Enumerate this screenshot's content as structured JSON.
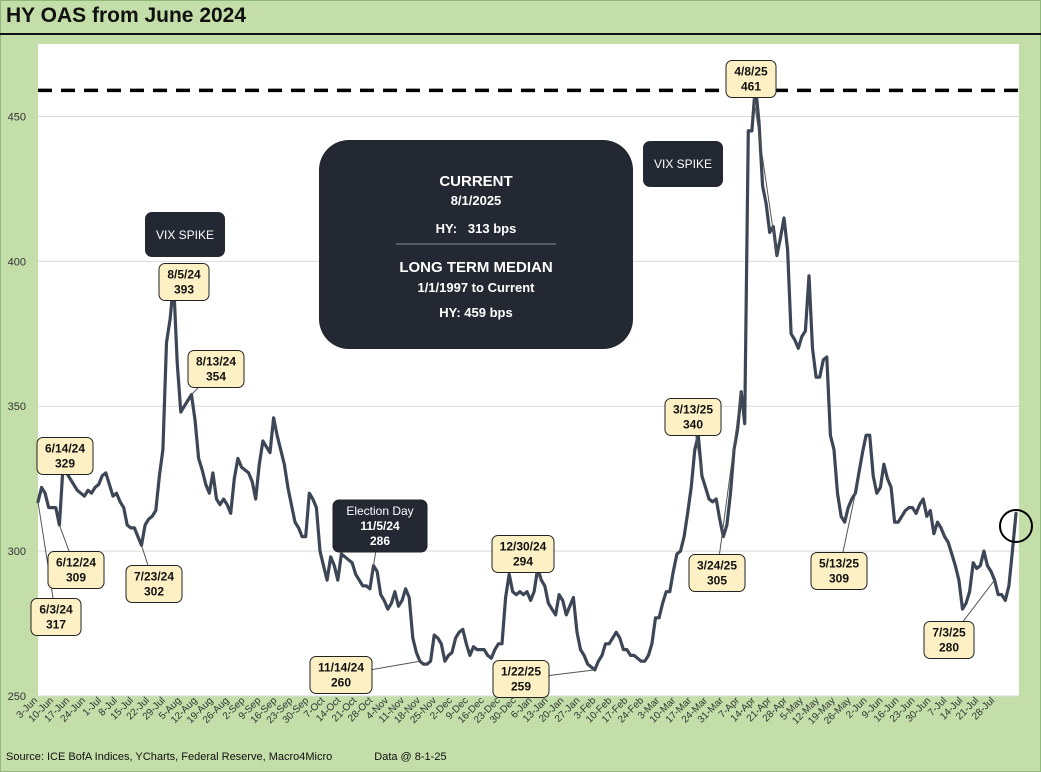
{
  "title": "HY OAS from June 2024",
  "footer": {
    "source": "Source: ICE BofA Indices, YCharts, Federal Reserve, Macro4Micro",
    "data_as_of": "Data @ 8-1-25"
  },
  "summary_box": {
    "current_heading": "CURRENT",
    "current_date": "8/1/2025",
    "current_value": "HY:   313 bps",
    "median_heading": "LONG TERM MEDIAN",
    "median_range": "1/1/1997 to Current",
    "median_value": "HY: 459 bps"
  },
  "colors": {
    "line": "#3d4656",
    "dark_box": "#232833",
    "callout_fill": "#fdf0c4",
    "frame": "#c3dea9",
    "median_line": "#000000"
  },
  "chart_data": {
    "type": "line",
    "ylim": [
      250,
      475
    ],
    "y_ticks": [
      250,
      300,
      350,
      400,
      450
    ],
    "median_line_value": 459,
    "grid": "horizontal",
    "x_tick_labels": [
      "3-Jun",
      "10-Jun",
      "17-Jun",
      "24-Jun",
      "1-Jul",
      "8-Jul",
      "15-Jul",
      "22-Jul",
      "29-Jul",
      "5-Aug",
      "12-Aug",
      "19-Aug",
      "26-Aug",
      "2-Sep",
      "9-Sep",
      "16-Sep",
      "23-Sep",
      "30-Sep",
      "7-Oct",
      "14-Oct",
      "21-Oct",
      "28-Oct",
      "4-Nov",
      "11-Nov",
      "18-Nov",
      "25-Nov",
      "2-Dec",
      "9-Dec",
      "16-Dec",
      "23-Dec",
      "30-Dec",
      "6-Jan",
      "13-Jan",
      "20-Jan",
      "27-Jan",
      "3-Feb",
      "10-Feb",
      "17-Feb",
      "24-Feb",
      "3-Mar",
      "10-Mar",
      "17-Mar",
      "24-Mar",
      "31-Mar",
      "7-Apr",
      "14-Apr",
      "21-Apr",
      "28-Apr",
      "5-May",
      "12-May",
      "19-May",
      "26-May",
      "2-Jun",
      "9-Jun",
      "16-Jun",
      "23-Jun",
      "30-Jun",
      "7-Jul",
      "14-Jul",
      "21-Jul",
      "28-Jul"
    ],
    "series": [
      {
        "values": [
          317,
          322,
          320,
          315,
          315,
          315,
          309,
          329,
          327,
          325,
          323,
          321,
          320,
          319,
          321,
          320,
          322,
          323,
          326,
          327,
          323,
          319,
          320,
          317,
          315,
          309,
          308,
          308,
          305,
          302,
          309,
          311,
          312,
          314,
          326,
          335,
          372,
          380,
          393,
          365,
          348,
          350,
          352,
          354,
          345,
          332,
          328,
          323,
          320,
          327,
          318,
          316,
          318,
          316,
          313,
          325,
          332,
          329,
          328,
          327,
          324,
          318,
          330,
          338,
          336,
          334,
          346,
          340,
          335,
          330,
          322,
          316,
          310,
          308,
          305,
          305,
          320,
          318,
          315,
          300,
          295,
          290,
          298,
          295,
          290,
          299,
          298,
          297,
          296,
          292,
          290,
          288,
          288,
          287,
          295,
          293,
          285,
          283,
          280,
          282,
          286,
          281,
          283,
          287,
          284,
          270,
          265,
          262,
          261,
          261,
          262,
          271,
          270,
          268,
          262,
          264,
          265,
          270,
          272,
          273,
          268,
          264,
          267,
          266,
          266,
          266,
          264,
          263,
          266,
          268,
          268,
          284,
          292,
          286,
          285,
          286,
          285,
          286,
          283,
          286,
          294,
          290,
          288,
          282,
          280,
          278,
          285,
          283,
          278,
          281,
          284,
          272,
          266,
          264,
          261,
          260,
          259,
          262,
          264,
          268,
          268,
          270,
          272,
          270,
          266,
          266,
          264,
          264,
          263,
          262,
          262,
          264,
          268,
          277,
          277,
          282,
          286,
          286,
          293,
          299,
          300,
          305,
          313,
          322,
          335,
          340,
          326,
          322,
          318,
          317,
          318,
          311,
          305,
          309,
          320,
          335,
          342,
          355,
          344,
          445,
          445,
          461,
          448,
          426,
          420,
          410,
          412,
          402,
          408,
          415,
          404,
          375,
          373,
          370,
          374,
          376,
          395,
          370,
          360,
          360,
          366,
          367,
          340,
          335,
          320,
          312,
          310,
          315,
          318,
          320,
          327,
          334,
          340,
          340,
          326,
          320,
          322,
          330,
          325,
          322,
          310,
          310,
          312,
          314,
          315,
          315,
          313,
          316,
          318,
          312,
          314,
          306,
          310,
          308,
          305,
          303,
          299,
          295,
          290,
          280,
          282,
          286,
          296,
          294,
          295,
          300,
          295,
          293,
          290,
          285,
          285,
          283,
          288,
          300,
          313
        ]
      }
    ],
    "annotations": [
      {
        "label": "6/3/24",
        "value": "317"
      },
      {
        "label": "6/14/24",
        "value": "329"
      },
      {
        "label": "6/12/24",
        "value": "309"
      },
      {
        "label": "7/23/24",
        "value": "302"
      },
      {
        "label": "8/5/24",
        "value": "393"
      },
      {
        "label": "8/13/24",
        "value": "354"
      },
      {
        "label": "Election Day",
        "sublabel": "11/5/24",
        "value": "286"
      },
      {
        "label": "11/14/24",
        "value": "260"
      },
      {
        "label": "12/30/24",
        "value": "294"
      },
      {
        "label": "1/22/25",
        "value": "259"
      },
      {
        "label": "3/13/25",
        "value": "340"
      },
      {
        "label": "3/24/25",
        "value": "305"
      },
      {
        "label": "4/8/25",
        "value": "461"
      },
      {
        "label": "5/13/25",
        "value": "309"
      },
      {
        "label": "7/3/25",
        "value": "280"
      }
    ],
    "event_labels": [
      "VIX SPIKE",
      "VIX SPIKE"
    ]
  }
}
